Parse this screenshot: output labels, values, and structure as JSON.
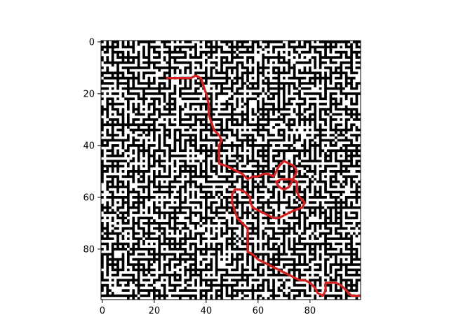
{
  "colors": {
    "background": "#ffffff",
    "wall": "#000000",
    "path": "#d62020",
    "axis": "#000000"
  },
  "chart_data": {
    "type": "heatmap",
    "title": "",
    "xlabel": "",
    "ylabel": "",
    "grid": false,
    "legend": "none",
    "xlim": [
      -0.5,
      99.5
    ],
    "ylim": [
      99.5,
      -0.5
    ],
    "x_ticks": [
      0,
      20,
      40,
      60,
      80
    ],
    "x_tick_labels": [
      "0",
      "20",
      "40",
      "60",
      "80"
    ],
    "y_ticks": [
      0,
      20,
      40,
      60,
      80
    ],
    "y_tick_labels": [
      "0",
      "20",
      "40",
      "60",
      "80"
    ],
    "cells": 100,
    "description_kind": "binary maze image (walls black, corridors white) with a red solution path overlay",
    "series": [
      {
        "kind": "solution-path",
        "points": [
          [
            25,
            14
          ],
          [
            30,
            14
          ],
          [
            34,
            14
          ],
          [
            36,
            13
          ],
          [
            38,
            14
          ],
          [
            39,
            17
          ],
          [
            40,
            20
          ],
          [
            41,
            24
          ],
          [
            41,
            28
          ],
          [
            42,
            31
          ],
          [
            43,
            34
          ],
          [
            45,
            36
          ],
          [
            46,
            38
          ],
          [
            45,
            40
          ],
          [
            45,
            43
          ],
          [
            45,
            47
          ],
          [
            48,
            48
          ],
          [
            50,
            49
          ],
          [
            52,
            50
          ],
          [
            54,
            51
          ],
          [
            56,
            53
          ],
          [
            58,
            52
          ],
          [
            60,
            52
          ],
          [
            62,
            51
          ],
          [
            64,
            51
          ],
          [
            66,
            52
          ],
          [
            67,
            50
          ],
          [
            68,
            48
          ],
          [
            70,
            46
          ],
          [
            72,
            47
          ],
          [
            74,
            48
          ],
          [
            75,
            50
          ],
          [
            74,
            52
          ],
          [
            73,
            54
          ],
          [
            72,
            56
          ],
          [
            70,
            57
          ],
          [
            68,
            56
          ],
          [
            67,
            54
          ],
          [
            69,
            53
          ],
          [
            71,
            53
          ],
          [
            73,
            53
          ],
          [
            75,
            54
          ],
          [
            75,
            56
          ],
          [
            75,
            58
          ],
          [
            76,
            60
          ],
          [
            78,
            62
          ],
          [
            77,
            64
          ],
          [
            74,
            65
          ],
          [
            72,
            66
          ],
          [
            70,
            67
          ],
          [
            68,
            68
          ],
          [
            66,
            68
          ],
          [
            64,
            67
          ],
          [
            62,
            66
          ],
          [
            60,
            65
          ],
          [
            58,
            64
          ],
          [
            57,
            62
          ],
          [
            57,
            60
          ],
          [
            55,
            58
          ],
          [
            53,
            57
          ],
          [
            51,
            57
          ],
          [
            50,
            59
          ],
          [
            50,
            62
          ],
          [
            51,
            65
          ],
          [
            52,
            68
          ],
          [
            54,
            70
          ],
          [
            56,
            72
          ],
          [
            56,
            75
          ],
          [
            56,
            78
          ],
          [
            56,
            81
          ],
          [
            58,
            82
          ],
          [
            60,
            84
          ],
          [
            62,
            85
          ],
          [
            64,
            86
          ],
          [
            66,
            87
          ],
          [
            68,
            88
          ],
          [
            70,
            89
          ],
          [
            72,
            90
          ],
          [
            74,
            91
          ],
          [
            76,
            92
          ],
          [
            78,
            92
          ],
          [
            80,
            93
          ],
          [
            82,
            95
          ],
          [
            83,
            97
          ],
          [
            85,
            98
          ],
          [
            86,
            96
          ],
          [
            86,
            93
          ],
          [
            88,
            93
          ],
          [
            90,
            93
          ],
          [
            92,
            94
          ],
          [
            94,
            96
          ],
          [
            96,
            98
          ],
          [
            99,
            98
          ]
        ]
      }
    ]
  }
}
